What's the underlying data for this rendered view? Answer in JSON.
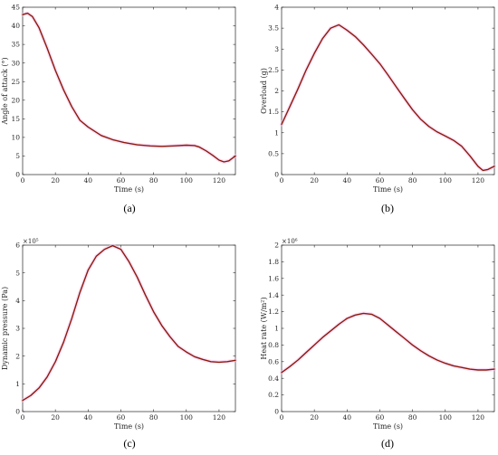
{
  "colors": {
    "line": "#8B1A0A",
    "halo": "#F6C4F0",
    "axis": "#262626"
  },
  "chart_data": [
    {
      "type": "line",
      "panel_label": "(a)",
      "xlabel": "Time (s)",
      "ylabel": "Angle of attack (°)",
      "exponent": "",
      "xlim": [
        0,
        130
      ],
      "ylim": [
        0,
        45
      ],
      "xticks": [
        0,
        20,
        40,
        60,
        80,
        100,
        120
      ],
      "yticks": [
        0,
        5,
        10,
        15,
        20,
        25,
        30,
        35,
        40,
        45
      ],
      "ytick_labels": [
        "0",
        "5",
        "10",
        "15",
        "20",
        "25",
        "30",
        "35",
        "40",
        "45"
      ],
      "series": [
        {
          "x": [
            0,
            3,
            6,
            10,
            15,
            20,
            25,
            30,
            35,
            40,
            48,
            55,
            62,
            70,
            78,
            85,
            92,
            100,
            105,
            108,
            112,
            116,
            120,
            123,
            126,
            130
          ],
          "y": [
            43,
            43.4,
            42.5,
            39.5,
            34,
            28,
            22.8,
            18.3,
            14.6,
            12.8,
            10.5,
            9.4,
            8.6,
            8.0,
            7.7,
            7.6,
            7.7,
            7.9,
            7.8,
            7.4,
            6.4,
            5.2,
            3.9,
            3.4,
            3.7,
            5.0
          ]
        }
      ]
    },
    {
      "type": "line",
      "panel_label": "(b)",
      "xlabel": "Time (s)",
      "ylabel": "Overload (g)",
      "exponent": "",
      "xlim": [
        0,
        130
      ],
      "ylim": [
        0,
        4
      ],
      "xticks": [
        0,
        20,
        40,
        60,
        80,
        100,
        120
      ],
      "yticks": [
        0,
        0.5,
        1,
        1.5,
        2,
        2.5,
        3,
        3.5,
        4
      ],
      "ytick_labels": [
        "0",
        "0.5",
        "1",
        "1.5",
        "2",
        "2.5",
        "3",
        "3.5",
        "4"
      ],
      "series": [
        {
          "x": [
            0,
            5,
            10,
            15,
            20,
            25,
            30,
            35,
            40,
            45,
            50,
            55,
            60,
            65,
            70,
            75,
            80,
            85,
            90,
            95,
            100,
            105,
            110,
            115,
            120,
            123,
            126,
            130
          ],
          "y": [
            1.2,
            1.62,
            2.05,
            2.5,
            2.9,
            3.25,
            3.5,
            3.58,
            3.45,
            3.3,
            3.1,
            2.88,
            2.65,
            2.38,
            2.1,
            1.82,
            1.55,
            1.32,
            1.15,
            1.02,
            0.92,
            0.82,
            0.68,
            0.45,
            0.2,
            0.1,
            0.12,
            0.2
          ]
        }
      ]
    },
    {
      "type": "line",
      "panel_label": "(c)",
      "xlabel": "Time (s)",
      "ylabel": "Dynamic pressure (Pa)",
      "exponent": "×10⁵",
      "xlim": [
        0,
        130
      ],
      "ylim": [
        0,
        6
      ],
      "xticks": [
        0,
        20,
        40,
        60,
        80,
        100,
        120
      ],
      "yticks": [
        0,
        1,
        2,
        3,
        4,
        5,
        6
      ],
      "ytick_labels": [
        "0",
        "1",
        "2",
        "3",
        "4",
        "5",
        "6"
      ],
      "series": [
        {
          "x": [
            0,
            5,
            10,
            15,
            20,
            25,
            30,
            35,
            40,
            45,
            50,
            55,
            60,
            65,
            70,
            75,
            80,
            85,
            90,
            95,
            100,
            105,
            110,
            115,
            120,
            125,
            130
          ],
          "y": [
            0.4,
            0.58,
            0.85,
            1.25,
            1.8,
            2.5,
            3.35,
            4.3,
            5.1,
            5.6,
            5.85,
            5.98,
            5.85,
            5.4,
            4.85,
            4.2,
            3.6,
            3.1,
            2.7,
            2.35,
            2.15,
            1.98,
            1.88,
            1.8,
            1.78,
            1.8,
            1.85
          ]
        }
      ]
    },
    {
      "type": "line",
      "panel_label": "(d)",
      "xlabel": "Time (s)",
      "ylabel": "Heat rate (W/m²)",
      "exponent": "×10⁶",
      "xlim": [
        0,
        130
      ],
      "ylim": [
        0,
        2
      ],
      "xticks": [
        0,
        20,
        40,
        60,
        80,
        100,
        120
      ],
      "yticks": [
        0,
        0.2,
        0.4,
        0.6,
        0.8,
        1,
        1.2,
        1.4,
        1.6,
        1.8,
        2
      ],
      "ytick_labels": [
        "0",
        "0.2",
        "0.4",
        "0.6",
        "0.8",
        "1",
        "1.2",
        "1.4",
        "1.6",
        "1.8",
        "2"
      ],
      "series": [
        {
          "x": [
            0,
            5,
            10,
            15,
            20,
            25,
            30,
            35,
            40,
            45,
            50,
            55,
            60,
            65,
            70,
            75,
            80,
            85,
            90,
            95,
            100,
            105,
            110,
            115,
            120,
            125,
            130
          ],
          "y": [
            0.47,
            0.54,
            0.62,
            0.71,
            0.8,
            0.89,
            0.97,
            1.05,
            1.12,
            1.16,
            1.18,
            1.17,
            1.12,
            1.04,
            0.96,
            0.88,
            0.8,
            0.73,
            0.67,
            0.62,
            0.58,
            0.55,
            0.53,
            0.51,
            0.5,
            0.5,
            0.51
          ]
        }
      ]
    }
  ]
}
